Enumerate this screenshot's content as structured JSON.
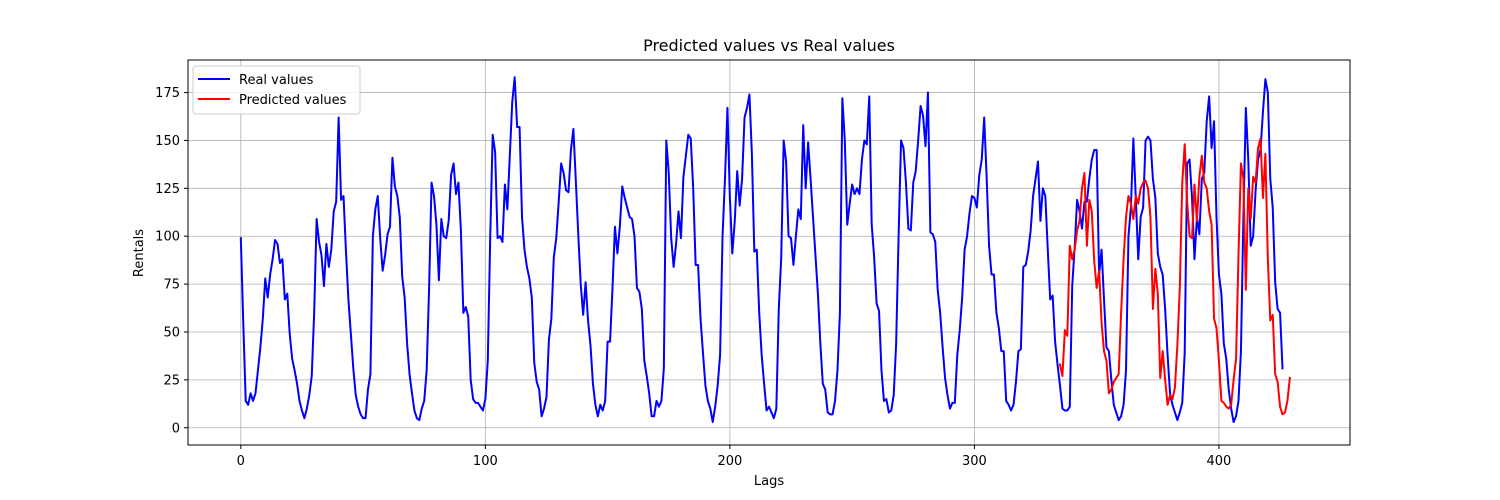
{
  "chart_data": {
    "type": "line",
    "title": "Predicted values vs Real values",
    "xlabel": "Lags",
    "ylabel": "Rentals",
    "xlim": [
      -21.6,
      453.6
    ],
    "ylim": [
      -9,
      192
    ],
    "xticks": [
      0,
      100,
      200,
      300,
      400
    ],
    "yticks": [
      0,
      25,
      50,
      75,
      100,
      125,
      150,
      175
    ],
    "grid": true,
    "legend_position": "upper-left",
    "series": [
      {
        "name": "Real values",
        "color": "#0000ff",
        "x_start": 0,
        "values": [
          99,
          55,
          14,
          12,
          18,
          14,
          18,
          30,
          42,
          57,
          78,
          68,
          80,
          88,
          98,
          96,
          86,
          88,
          67,
          70,
          49,
          36,
          30,
          23,
          14,
          9,
          5,
          10,
          17,
          27,
          60,
          109,
          97,
          90,
          74,
          96,
          84,
          93,
          113,
          118,
          162,
          119,
          121,
          92,
          67,
          49,
          31,
          17,
          11,
          7,
          5,
          5,
          20,
          28,
          100,
          114,
          121,
          99,
          82,
          90,
          101,
          105,
          141,
          126,
          121,
          110,
          79,
          68,
          44,
          28,
          18,
          9,
          5,
          4,
          10,
          14,
          30,
          73,
          128,
          121,
          106,
          77,
          109,
          100,
          99,
          108,
          132,
          138,
          122,
          128,
          103,
          60,
          63,
          58,
          25,
          15,
          13,
          13,
          11,
          9,
          15,
          35,
          100,
          153,
          144,
          99,
          100,
          97,
          127,
          114,
          142,
          170,
          183,
          157,
          157,
          110,
          93,
          84,
          78,
          68,
          34,
          24,
          20,
          6,
          10,
          16,
          46,
          57,
          89,
          99,
          118,
          138,
          133,
          124,
          123,
          145,
          156,
          129,
          101,
          75,
          59,
          76,
          56,
          43,
          23,
          12,
          6,
          12,
          9,
          14,
          45,
          45,
          73,
          105,
          91,
          105,
          126,
          120,
          115,
          110,
          109,
          100,
          73,
          71,
          62,
          35,
          27,
          18,
          6,
          6,
          14,
          11,
          14,
          31,
          150,
          133,
          99,
          84,
          96,
          113,
          99,
          131,
          142,
          153,
          151,
          125,
          85,
          85,
          57,
          39,
          22,
          14,
          10,
          3,
          11,
          22,
          38,
          100,
          130,
          167,
          120,
          91,
          108,
          134,
          116,
          130,
          162,
          167,
          174,
          143,
          92,
          93,
          60,
          38,
          23,
          9,
          11,
          8,
          5,
          10,
          62,
          89,
          150,
          139,
          100,
          99,
          85,
          100,
          114,
          109,
          158,
          125,
          149,
          130,
          110,
          90,
          70,
          44,
          23,
          20,
          8,
          7,
          7,
          14,
          30,
          60,
          172,
          150,
          106,
          117,
          127,
          122,
          125,
          122,
          140,
          150,
          148,
          173,
          106,
          89,
          65,
          61,
          30,
          14,
          15,
          8,
          9,
          17,
          44,
          100,
          150,
          146,
          128,
          104,
          103,
          128,
          134,
          150,
          168,
          163,
          147,
          175,
          102,
          101,
          97,
          72,
          60,
          42,
          26,
          17,
          10,
          13,
          13,
          38,
          51,
          68,
          93,
          100,
          112,
          121,
          120,
          115,
          132,
          140,
          162,
          131,
          95,
          80,
          80,
          60,
          52,
          40,
          40,
          14,
          12,
          9,
          12,
          24,
          40,
          41,
          84,
          85,
          92,
          103,
          121,
          130,
          139,
          108,
          125,
          121,
          93,
          67,
          69,
          45,
          33,
          22,
          10,
          9,
          9,
          11,
          74,
          94,
          119,
          113,
          104,
          118,
          118,
          130,
          140,
          145,
          145,
          80,
          93,
          67,
          42,
          40,
          25,
          12,
          8,
          4,
          6,
          12,
          30,
          100,
          115,
          151,
          120,
          88,
          110,
          115,
          150,
          152,
          150,
          130,
          120,
          91,
          84,
          80,
          62,
          38,
          18,
          12,
          8,
          4,
          8,
          13,
          39,
          138,
          140,
          120,
          88,
          110,
          101,
          130,
          133,
          160,
          173,
          146,
          160,
          110,
          80,
          70,
          44,
          36,
          20,
          10,
          3,
          6,
          14,
          40,
          110,
          167,
          140,
          95,
          100,
          124,
          140,
          145,
          165,
          182,
          175,
          130,
          115,
          76,
          62,
          60,
          31
        ]
      },
      {
        "name": "Predicted values",
        "color": "#ff0000",
        "x_start": 335,
        "values": [
          33,
          27,
          51,
          48,
          95,
          88,
          93,
          103,
          108,
          125,
          133,
          95,
          119,
          113,
          87,
          73,
          82,
          55,
          40,
          35,
          18,
          20,
          24,
          26,
          28,
          60,
          88,
          110,
          121,
          117,
          109,
          121,
          117,
          125,
          128,
          129,
          125,
          110,
          62,
          83,
          70,
          26,
          40,
          25,
          12,
          17,
          15,
          21,
          43,
          73,
          128,
          148,
          118,
          100,
          99,
          127,
          108,
          131,
          142,
          128,
          125,
          113,
          106,
          57,
          52,
          35,
          14,
          13,
          11,
          10,
          12,
          25,
          36,
          90,
          138,
          130,
          72,
          125,
          109,
          131,
          128,
          146,
          151,
          120,
          143,
          88,
          56,
          59,
          28,
          24,
          11,
          7,
          8,
          14,
          26
        ]
      }
    ]
  }
}
